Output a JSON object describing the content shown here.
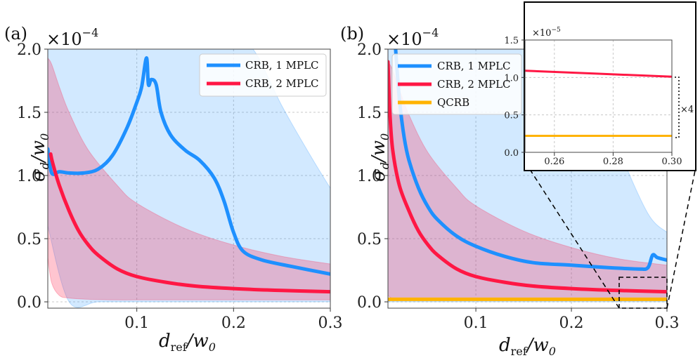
{
  "chart_data": [
    {
      "panel": "(a)",
      "type": "line",
      "xlabel": "d_ref/w_0",
      "ylabel": "σ_d/w_0",
      "y_scale_label": "×10^−4",
      "xlim": [
        0.008,
        0.3
      ],
      "ylim": [
        -0.05,
        2.0
      ],
      "xticks": [
        0.1,
        0.2,
        0.3
      ],
      "xtick_labels": [
        "0.1",
        "0.2",
        "0.3"
      ],
      "yticks": [
        0.0,
        0.5,
        1.0,
        1.5,
        2.0
      ],
      "ytick_labels": [
        "0.0",
        "0.5",
        "1.0",
        "1.5",
        "2.0"
      ],
      "legend": [
        "CRB, 1 MPLC",
        "CRB, 2 MPLC"
      ],
      "series": [
        {
          "name": "CRB, 1 MPLC",
          "color": "#1e90ff",
          "x": [
            0.008,
            0.012,
            0.02,
            0.03,
            0.045,
            0.06,
            0.075,
            0.09,
            0.1,
            0.105,
            0.11,
            0.112,
            0.115,
            0.12,
            0.125,
            0.135,
            0.15,
            0.165,
            0.18,
            0.19,
            0.2,
            0.21,
            0.23,
            0.26,
            0.3
          ],
          "y": [
            1.21,
            1.02,
            1.03,
            1.02,
            1.02,
            1.05,
            1.16,
            1.38,
            1.58,
            1.7,
            1.93,
            1.72,
            1.76,
            1.72,
            1.5,
            1.32,
            1.2,
            1.12,
            0.98,
            0.8,
            0.55,
            0.4,
            0.33,
            0.28,
            0.22
          ]
        },
        {
          "name": "CRB, 2 MPLC",
          "color": "#ff1744",
          "x": [
            0.011,
            0.013,
            0.02,
            0.03,
            0.04,
            0.05,
            0.06,
            0.08,
            0.1,
            0.13,
            0.16,
            0.2,
            0.25,
            0.3
          ],
          "y": [
            1.17,
            1.1,
            0.92,
            0.72,
            0.56,
            0.45,
            0.37,
            0.26,
            0.2,
            0.155,
            0.125,
            0.105,
            0.09,
            0.08
          ]
        }
      ],
      "bands": [
        {
          "name": "1 MPLC range",
          "color": "#1e90ff",
          "x": [
            0.008,
            0.03,
            0.06,
            0.1,
            0.15,
            0.2,
            0.22,
            0.25,
            0.28,
            0.3
          ],
          "lower": [
            0.6,
            0.0,
            0.0,
            0.0,
            0.0,
            0.0,
            0.0,
            0.0,
            0.0,
            0.0
          ],
          "upper": [
            2.0,
            2.0,
            2.0,
            2.0,
            2.0,
            2.0,
            2.0,
            1.55,
            1.15,
            0.9
          ]
        },
        {
          "name": "2 MPLC range",
          "color": "#ff1744",
          "x": [
            0.008,
            0.012,
            0.02,
            0.03,
            0.05,
            0.08,
            0.1,
            0.15,
            0.2,
            0.25,
            0.3
          ],
          "lower": [
            0.35,
            0.15,
            0.05,
            0.03,
            0.02,
            0.015,
            0.015,
            0.015,
            0.015,
            0.015,
            0.015
          ],
          "upper": [
            1.93,
            1.88,
            1.7,
            1.5,
            1.2,
            0.92,
            0.78,
            0.58,
            0.45,
            0.36,
            0.3
          ]
        }
      ]
    },
    {
      "panel": "(b)",
      "type": "line",
      "xlabel": "d_ref/w_0",
      "ylabel": "σ_d/w_0",
      "y_scale_label": "×10^−4",
      "xlim": [
        0.008,
        0.3
      ],
      "ylim": [
        -0.05,
        2.0
      ],
      "xticks": [
        0.1,
        0.2,
        0.3
      ],
      "xtick_labels": [
        "0.1",
        "0.2",
        "0.3"
      ],
      "yticks": [
        0.0,
        0.5,
        1.0,
        1.5,
        2.0
      ],
      "ytick_labels": [
        "0.0",
        "0.5",
        "1.0",
        "1.5",
        "2.0"
      ],
      "legend": [
        "CRB, 1 MPLC",
        "CRB, 2 MPLC",
        "QCRB"
      ],
      "series": [
        {
          "name": "CRB, 1 MPLC",
          "color": "#1e90ff",
          "x": [
            0.016,
            0.02,
            0.025,
            0.03,
            0.04,
            0.05,
            0.06,
            0.08,
            0.1,
            0.13,
            0.16,
            0.2,
            0.24,
            0.27,
            0.28,
            0.285,
            0.29,
            0.3
          ],
          "y": [
            2.0,
            1.6,
            1.3,
            1.12,
            0.9,
            0.75,
            0.65,
            0.52,
            0.44,
            0.36,
            0.31,
            0.29,
            0.27,
            0.26,
            0.27,
            0.37,
            0.35,
            0.33
          ]
        },
        {
          "name": "CRB, 2 MPLC",
          "color": "#ff1744",
          "x": [
            0.008,
            0.01,
            0.013,
            0.02,
            0.03,
            0.04,
            0.05,
            0.06,
            0.08,
            0.1,
            0.13,
            0.16,
            0.2,
            0.25,
            0.3
          ],
          "y": [
            1.9,
            1.5,
            1.2,
            0.92,
            0.72,
            0.56,
            0.45,
            0.37,
            0.26,
            0.2,
            0.155,
            0.125,
            0.105,
            0.09,
            0.08
          ]
        },
        {
          "name": "QCRB",
          "color": "#ffb300",
          "x": [
            0.008,
            0.3
          ],
          "y": [
            0.02,
            0.02
          ]
        }
      ],
      "bands": [
        {
          "name": "1 MPLC range",
          "color": "#1e90ff",
          "x": [
            0.008,
            0.05,
            0.08,
            0.1,
            0.12,
            0.14,
            0.16,
            0.18,
            0.2,
            0.22,
            0.25,
            0.28,
            0.3
          ],
          "lower": [
            0.0,
            0.0,
            0.0,
            0.0,
            0.0,
            0.0,
            0.0,
            0.0,
            0.0,
            0.0,
            0.0,
            0.0,
            0.0
          ],
          "upper": [
            2.0,
            2.0,
            2.0,
            2.0,
            2.0,
            2.0,
            2.0,
            2.0,
            2.0,
            1.8,
            1.2,
            0.7,
            0.55
          ]
        },
        {
          "name": "2 MPLC range",
          "color": "#ff1744",
          "x": [
            0.008,
            0.012,
            0.02,
            0.03,
            0.05,
            0.08,
            0.1,
            0.15,
            0.2,
            0.25,
            0.3
          ],
          "lower": [
            0.05,
            0.03,
            0.025,
            0.02,
            0.02,
            0.02,
            0.02,
            0.02,
            0.02,
            0.02,
            0.02
          ],
          "upper": [
            1.9,
            1.85,
            1.68,
            1.48,
            1.18,
            0.9,
            0.76,
            0.56,
            0.43,
            0.34,
            0.29
          ]
        }
      ],
      "inset": {
        "y_scale_label": "×10^−5",
        "xlim": [
          0.25,
          0.3
        ],
        "ylim": [
          0.0,
          1.5
        ],
        "xticks": [
          0.26,
          0.28,
          0.3
        ],
        "xtick_labels": [
          "0.26",
          "0.28",
          "0.30"
        ],
        "yticks": [
          0.0,
          0.5,
          1.0,
          1.5
        ],
        "ytick_labels": [
          "0.0",
          "0.5",
          "1.0",
          "1.5"
        ],
        "annotation": "×4",
        "series": [
          {
            "name": "CRB, 2 MPLC",
            "color": "#ff1744",
            "x": [
              0.25,
              0.3
            ],
            "y": [
              1.09,
              1.01
            ]
          },
          {
            "name": "QCRB",
            "color": "#ffb300",
            "x": [
              0.25,
              0.3
            ],
            "y": [
              0.22,
              0.22
            ]
          }
        ]
      }
    }
  ]
}
